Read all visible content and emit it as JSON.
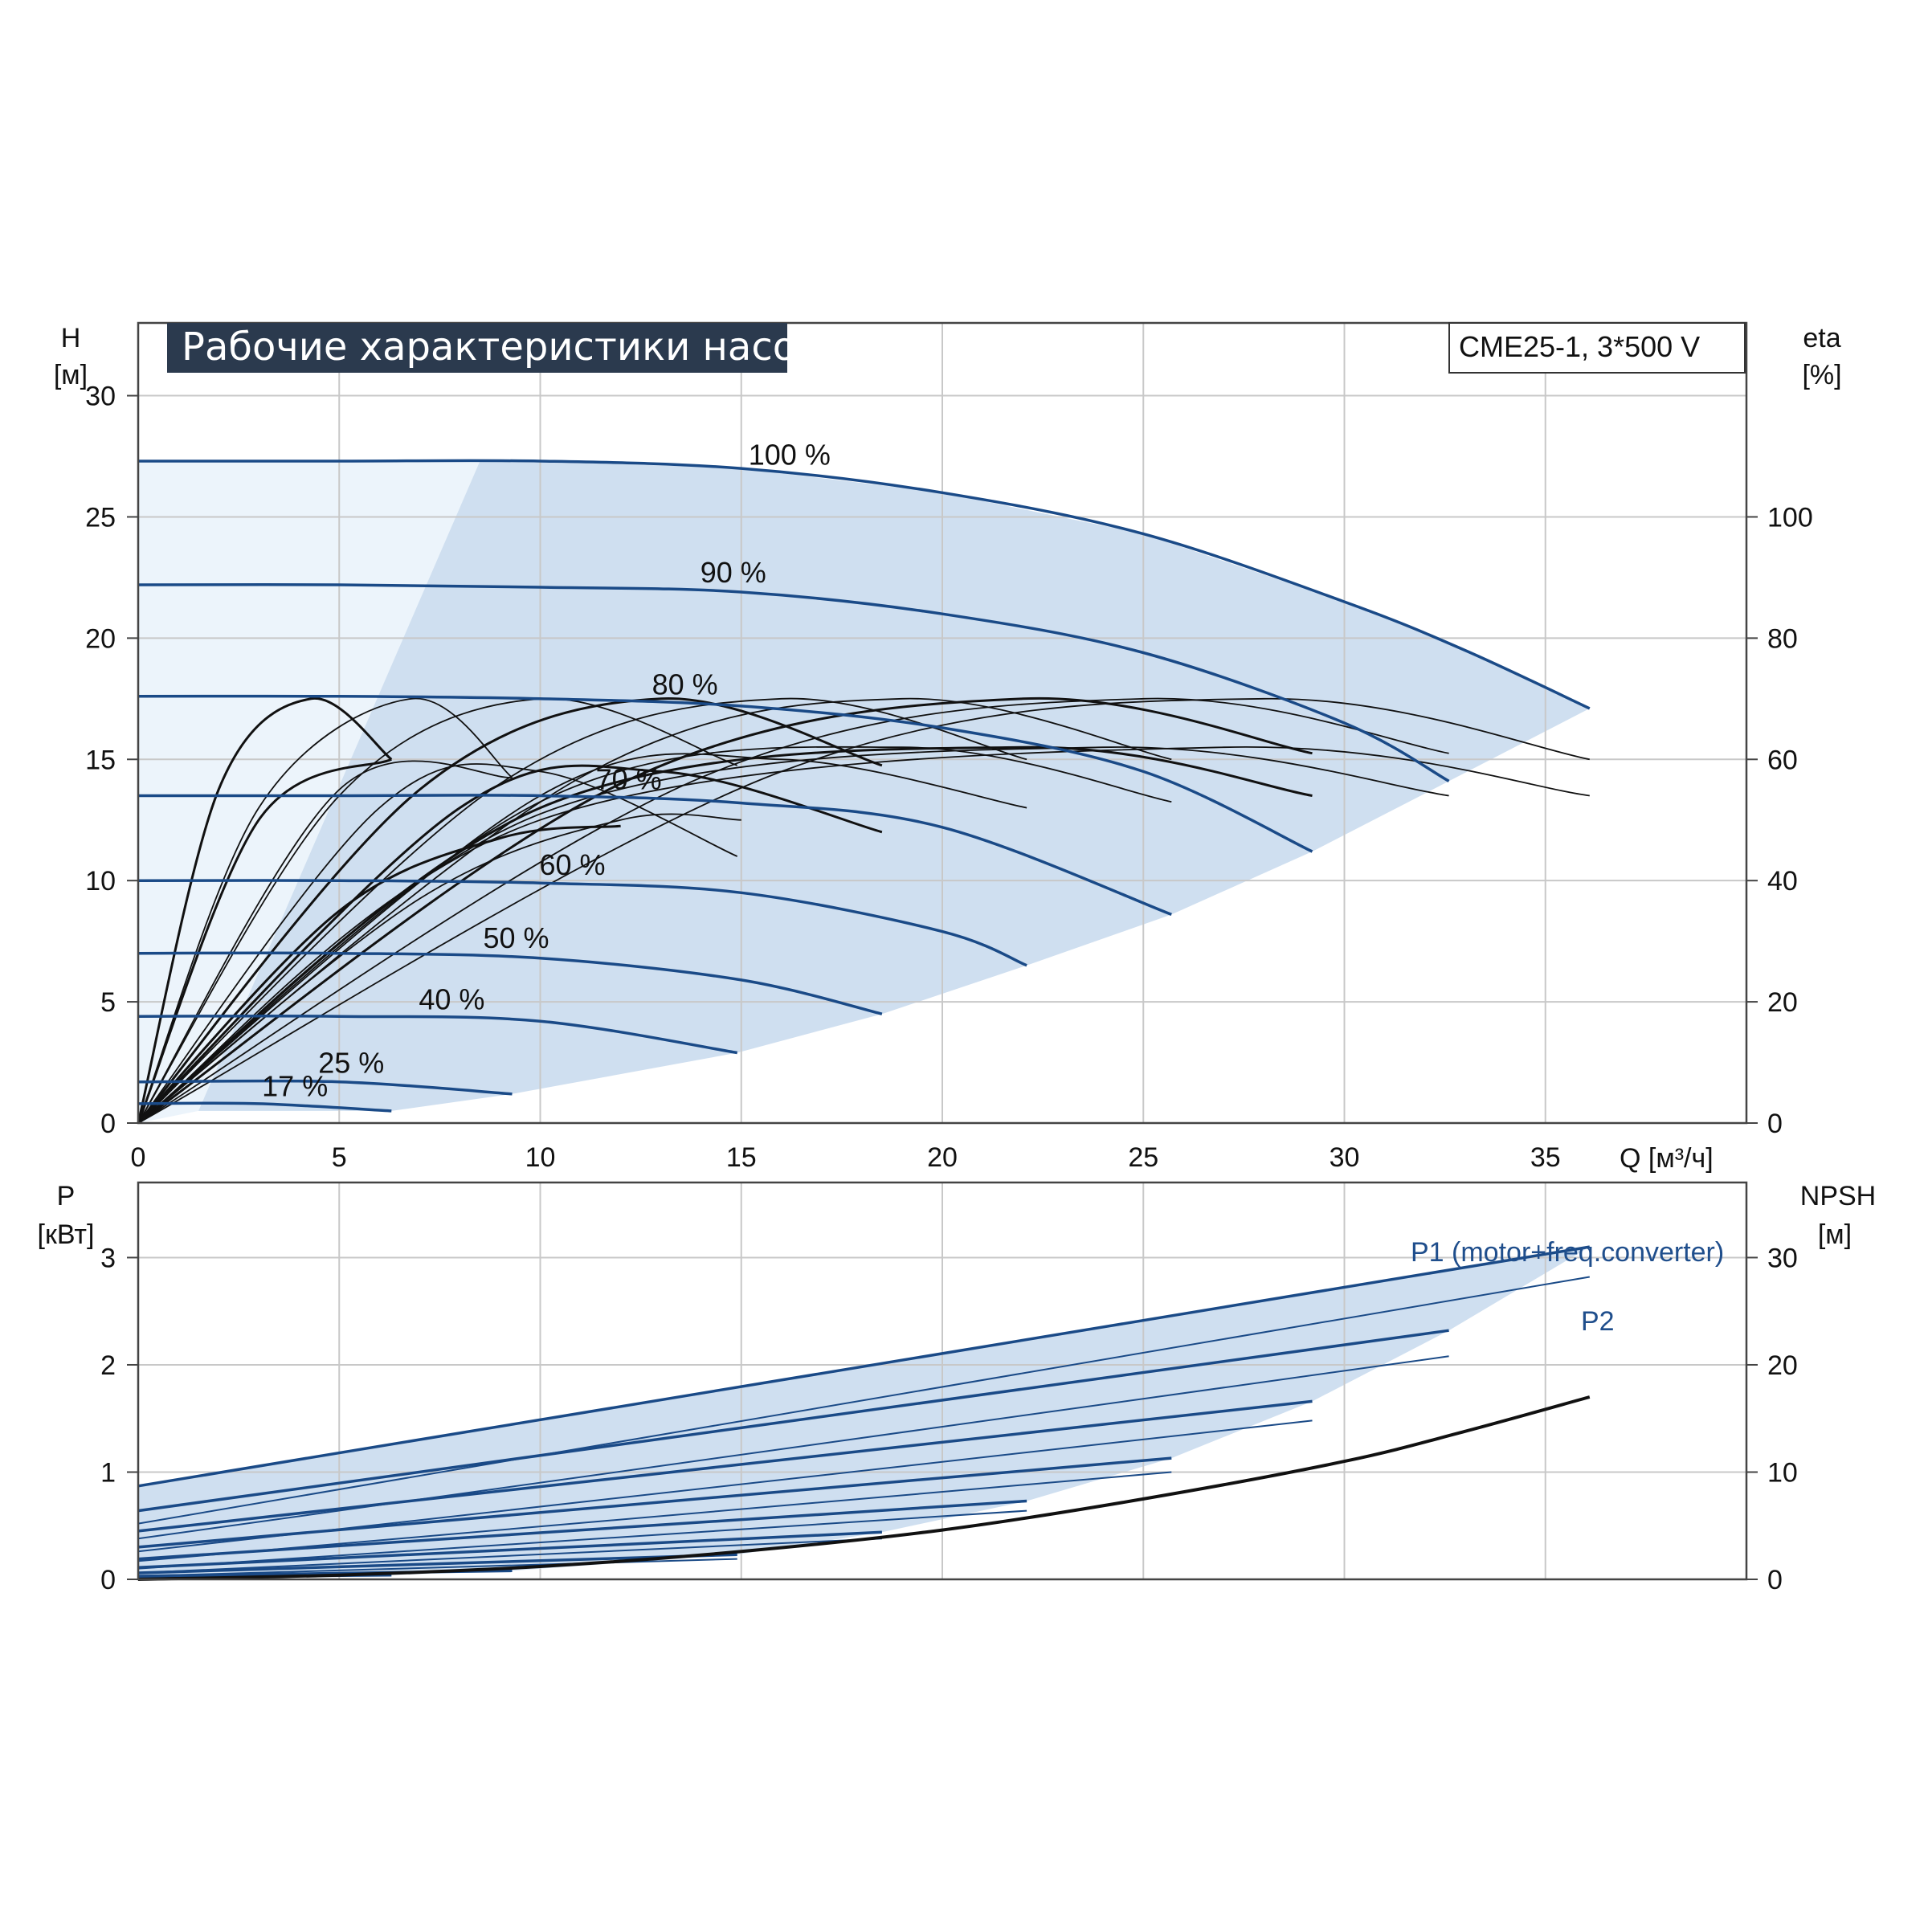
{
  "header": {
    "title": "Рабочие характеристики насоса",
    "model": "CME25-1, 3*500 V"
  },
  "colors": {
    "curve_blue": "#1a4a87",
    "band_fill": "#cfdff0",
    "band_fill_light": "#ecf4fb",
    "title_bg": "#2b3a4e",
    "grid": "#c8c8c8",
    "black": "#111111"
  },
  "chart_data": [
    {
      "type": "line",
      "name": "performance",
      "x_label": "Q [м³/ч]",
      "y_label_left": "H",
      "y_unit_left": "[м]",
      "y_label_right": "eta",
      "y_unit_right": "[%]",
      "xlim": [
        0,
        40
      ],
      "ylim_left": [
        0,
        33
      ],
      "ylim_right": [
        0,
        132
      ],
      "x_ticks": [
        0,
        5,
        10,
        15,
        20,
        25,
        30,
        35
      ],
      "y_ticks_left": [
        0,
        5,
        10,
        15,
        20,
        25,
        30
      ],
      "y_ticks_right": [
        0,
        20,
        40,
        60,
        80,
        100
      ],
      "grid": true,
      "head_curves": [
        {
          "label": "100 %",
          "x": [
            0,
            5,
            10,
            15,
            20,
            25,
            30,
            33,
            36.1
          ],
          "y": [
            27.3,
            27.3,
            27.3,
            27.0,
            26.0,
            24.3,
            21.5,
            19.5,
            17.1
          ]
        },
        {
          "label": "90 %",
          "x": [
            0,
            5,
            10,
            15,
            20,
            25,
            30,
            32.6
          ],
          "y": [
            22.2,
            22.2,
            22.1,
            21.9,
            21.0,
            19.4,
            16.5,
            14.1
          ]
        },
        {
          "label": "80 %",
          "x": [
            0,
            5,
            10,
            15,
            20,
            25,
            29.2
          ],
          "y": [
            17.6,
            17.6,
            17.5,
            17.2,
            16.3,
            14.5,
            11.2
          ]
        },
        {
          "label": "70 %",
          "x": [
            0,
            5,
            10,
            15,
            20,
            25.7
          ],
          "y": [
            13.5,
            13.5,
            13.5,
            13.2,
            12.2,
            8.6
          ]
        },
        {
          "label": "60 %",
          "x": [
            0,
            5,
            10,
            15,
            20,
            22.1
          ],
          "y": [
            10.0,
            10.0,
            9.9,
            9.5,
            7.9,
            6.5
          ]
        },
        {
          "label": "50 %",
          "x": [
            0,
            5,
            10,
            15,
            18.5
          ],
          "y": [
            7.0,
            7.0,
            6.8,
            5.9,
            4.5
          ]
        },
        {
          "label": "40 %",
          "x": [
            0,
            5,
            10,
            14.9
          ],
          "y": [
            4.4,
            4.4,
            4.2,
            2.9
          ]
        },
        {
          "label": "25 %",
          "x": [
            0,
            5,
            9.3
          ],
          "y": [
            1.7,
            1.7,
            1.2
          ]
        },
        {
          "label": "17 %",
          "x": [
            0,
            3,
            6.3
          ],
          "y": [
            0.8,
            0.8,
            0.5
          ]
        }
      ],
      "eta_curves": [
        {
          "x": [
            0,
            3,
            6.3
          ],
          "y": [
            0,
            50,
            60
          ]
        },
        {
          "x": [
            0,
            5,
            9.3
          ],
          "y": [
            0,
            55,
            57
          ]
        },
        {
          "x": [
            0,
            6,
            10,
            14.9
          ],
          "y": [
            0,
            52,
            58,
            44
          ]
        },
        {
          "x": [
            0,
            8,
            13,
            18.5
          ],
          "y": [
            0,
            52,
            58,
            48
          ]
        },
        {
          "x": [
            0,
            10,
            16,
            22.1
          ],
          "y": [
            0,
            54,
            60,
            52
          ]
        },
        {
          "x": [
            0,
            10,
            19,
            25.7
          ],
          "y": [
            0,
            53,
            62,
            53
          ]
        },
        {
          "x": [
            0,
            10,
            22,
            29.2
          ],
          "y": [
            0,
            52,
            62,
            54
          ]
        },
        {
          "x": [
            0,
            10,
            24,
            32.6
          ],
          "y": [
            0,
            51,
            62,
            54
          ]
        },
        {
          "x": [
            0,
            10,
            27,
            36.1
          ],
          "y": [
            0,
            50,
            62,
            54
          ]
        },
        {
          "x": [
            0,
            2,
            4.3,
            6.3
          ],
          "y": [
            0,
            55,
            70,
            60
          ]
        },
        {
          "x": [
            0,
            3,
            6.8,
            9.3
          ],
          "y": [
            0,
            52,
            70,
            57
          ]
        },
        {
          "x": [
            0,
            5,
            10,
            14.9
          ],
          "y": [
            0,
            54,
            70,
            59
          ]
        },
        {
          "x": [
            0,
            7,
            13,
            18.5
          ],
          "y": [
            0,
            55,
            70,
            59
          ]
        },
        {
          "x": [
            0,
            9,
            16,
            22.1
          ],
          "y": [
            0,
            56,
            70,
            60
          ]
        },
        {
          "x": [
            0,
            11,
            19,
            25.7
          ],
          "y": [
            0,
            57,
            70,
            60
          ]
        },
        {
          "x": [
            0,
            12,
            22,
            29.2
          ],
          "y": [
            0,
            56,
            70,
            61
          ]
        },
        {
          "x": [
            0,
            14,
            25,
            32.6
          ],
          "y": [
            0,
            57,
            70,
            61
          ]
        },
        {
          "x": [
            0,
            16,
            28,
            36.1
          ],
          "y": [
            0,
            58,
            70,
            60
          ]
        },
        {
          "x": [
            0,
            5,
            9,
            12
          ],
          "y": [
            0,
            35,
            47,
            49
          ]
        },
        {
          "x": [
            0,
            7,
            12,
            15
          ],
          "y": [
            0,
            37,
            50,
            50
          ]
        }
      ]
    },
    {
      "type": "line",
      "name": "power",
      "y_label_left": "P",
      "y_unit_left": "[кВт]",
      "y_label_right": "NPSH",
      "y_unit_right": "[м]",
      "xlim": [
        0,
        40
      ],
      "ylim_left": [
        0,
        3.7
      ],
      "ylim_right": [
        0,
        37
      ],
      "y_ticks_left": [
        0,
        1,
        2,
        3
      ],
      "y_ticks_right": [
        0,
        10,
        20,
        30
      ],
      "grid": true,
      "series_labels": {
        "p1": "P1 (motor+freq.converter)",
        "p2": "P2"
      },
      "p1_curves": [
        {
          "x": [
            0,
            36.1
          ],
          "y": [
            0.87,
            3.1
          ]
        },
        {
          "x": [
            0,
            32.6
          ],
          "y": [
            0.64,
            2.32
          ]
        },
        {
          "x": [
            0,
            29.2
          ],
          "y": [
            0.45,
            1.66
          ]
        },
        {
          "x": [
            0,
            25.7
          ],
          "y": [
            0.3,
            1.13
          ]
        },
        {
          "x": [
            0,
            22.1
          ],
          "y": [
            0.19,
            0.73
          ]
        },
        {
          "x": [
            0,
            18.5
          ],
          "y": [
            0.11,
            0.44
          ]
        },
        {
          "x": [
            0,
            14.9
          ],
          "y": [
            0.06,
            0.23
          ]
        },
        {
          "x": [
            0,
            9.3
          ],
          "y": [
            0.03,
            0.08
          ]
        },
        {
          "x": [
            0,
            6.3
          ],
          "y": [
            0.02,
            0.04
          ]
        }
      ],
      "p2_curves": [
        {
          "x": [
            0,
            36.1
          ],
          "y": [
            0.52,
            2.82
          ]
        },
        {
          "x": [
            0,
            32.6
          ],
          "y": [
            0.38,
            2.08
          ]
        },
        {
          "x": [
            0,
            29.2
          ],
          "y": [
            0.26,
            1.48
          ]
        },
        {
          "x": [
            0,
            25.7
          ],
          "y": [
            0.17,
            1.0
          ]
        },
        {
          "x": [
            0,
            22.1
          ],
          "y": [
            0.1,
            0.64
          ]
        },
        {
          "x": [
            0,
            18.5
          ],
          "y": [
            0.06,
            0.38
          ]
        },
        {
          "x": [
            0,
            14.9
          ],
          "y": [
            0.03,
            0.19
          ]
        }
      ],
      "npsh_curve": {
        "x": [
          0,
          5,
          10,
          15,
          20,
          25,
          30,
          33,
          36.1
        ],
        "y": [
          0,
          0.4,
          1.2,
          2.6,
          4.6,
          7.5,
          11.0,
          13.8,
          17.0
        ]
      }
    }
  ]
}
